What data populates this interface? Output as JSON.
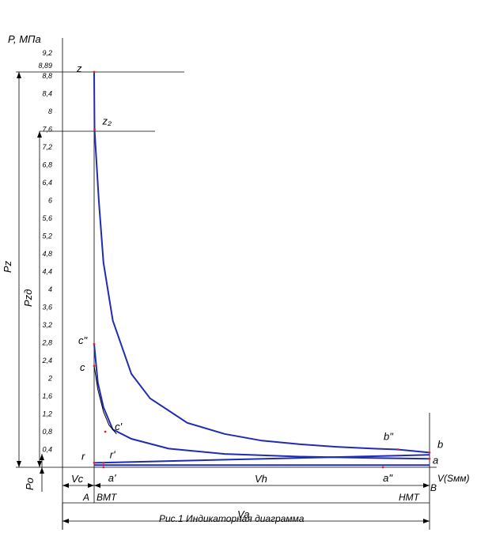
{
  "chart_data": {
    "type": "line",
    "title": "",
    "caption": "Рис.1 Индикаторная диаграмма",
    "ylabel": "P, МПа",
    "xlabel": "V(Sмм)",
    "ylim": [
      0,
      9.4
    ],
    "y_ticks": [
      "0,4",
      "0,8",
      "1,2",
      "1,6",
      "2",
      "2,4",
      "2,8",
      "3,2",
      "3,6",
      "4",
      "4,4",
      "4,8",
      "5,2",
      "5,6",
      "6",
      "6,4",
      "6,8",
      "7,2",
      "7,6",
      "8",
      "8,4",
      "8,8",
      "8,89",
      "9,2"
    ],
    "y_tick_values": [
      0.4,
      0.8,
      1.2,
      1.6,
      2.0,
      2.4,
      2.8,
      3.2,
      3.6,
      4.0,
      4.4,
      4.8,
      5.2,
      5.6,
      6.0,
      6.4,
      6.8,
      7.2,
      7.6,
      8.0,
      8.4,
      8.8,
      8.89,
      9.2
    ],
    "points": [
      {
        "label": "z",
        "v": 1.0,
        "p": 8.89
      },
      {
        "label": "z₂",
        "v": 1.02,
        "p": 7.6
      },
      {
        "label": "c\"",
        "v": 1.0,
        "p": 2.77
      },
      {
        "label": "c",
        "v": 1.0,
        "p": 2.28
      },
      {
        "label": "c'",
        "v": 1.6,
        "p": 0.8
      },
      {
        "label": "b\"",
        "v": 17.3,
        "p": 0.4
      },
      {
        "label": "b",
        "v": 19.0,
        "p": 0.33
      },
      {
        "label": "a",
        "v": 19.0,
        "p": 0.19
      },
      {
        "label": "r",
        "v": 1.0,
        "p": 0.1
      },
      {
        "label": "r'",
        "v": 1.5,
        "p": 0.1
      },
      {
        "label": "a'",
        "v": 1.5,
        "p": 0.0
      },
      {
        "label": "a\"",
        "v": 16.5,
        "p": 0.0
      }
    ],
    "series": [
      {
        "name": "",
        "color": "#1f2bb5",
        "points": [
          [
            1,
            8.89
          ],
          [
            1.02,
            7.6
          ],
          [
            1.25,
            6.0
          ],
          [
            1.5,
            4.6
          ],
          [
            2,
            3.3
          ],
          [
            3,
            2.1
          ],
          [
            4,
            1.55
          ],
          [
            6,
            1.0
          ],
          [
            8,
            0.75
          ],
          [
            10,
            0.6
          ],
          [
            12,
            0.52
          ],
          [
            14,
            0.46
          ],
          [
            16,
            0.42
          ],
          [
            17.3,
            0.4
          ],
          [
            19,
            0.33
          ]
        ]
      },
      {
        "name": "",
        "color": "#1f2bb5",
        "points": [
          [
            19,
            0.19
          ],
          [
            16,
            0.21
          ],
          [
            12,
            0.24
          ],
          [
            8,
            0.3
          ],
          [
            5,
            0.42
          ],
          [
            3,
            0.64
          ],
          [
            2,
            0.85
          ],
          [
            1.5,
            1.35
          ],
          [
            1.2,
            1.9
          ],
          [
            1.0,
            2.77
          ]
        ]
      },
      {
        "name": "",
        "color": "#000000",
        "points": [
          [
            1.0,
            2.28
          ],
          [
            1.2,
            1.75
          ],
          [
            1.5,
            1.25
          ],
          [
            1.8,
            0.95
          ],
          [
            2.2,
            0.75
          ]
        ]
      },
      {
        "name": "",
        "color": "#1f2bb5",
        "points": [
          [
            1,
            0.1
          ],
          [
            19,
            0.28
          ]
        ]
      },
      {
        "name": "",
        "color": "#1f2bb5",
        "points": [
          [
            1,
            0.05
          ],
          [
            19,
            0.05
          ]
        ]
      }
    ],
    "vertical_labels": {
      "pz": "Pz",
      "pzd": "Pzд",
      "p0": "Po"
    },
    "dimension_labels": {
      "vc": "Vc",
      "vh": "Vh",
      "va": "Va",
      "A": "A",
      "B": "B",
      "vmt": "ВМТ",
      "nmt": "НМТ"
    },
    "grid": false,
    "legend": "none"
  }
}
